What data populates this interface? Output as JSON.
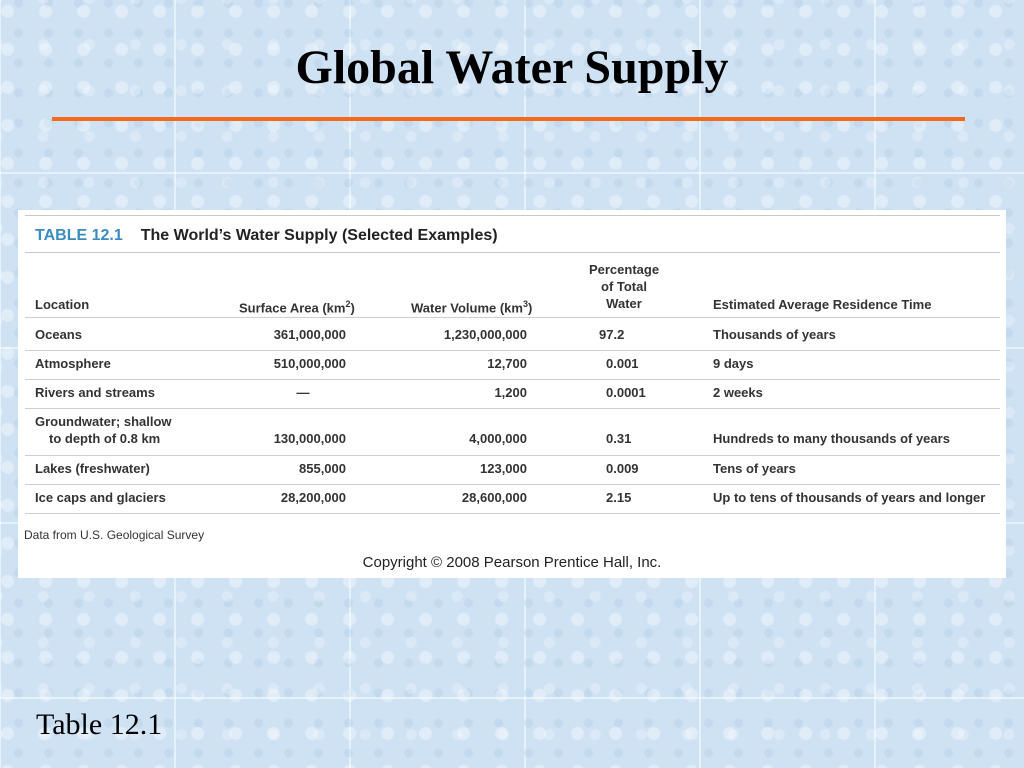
{
  "slide": {
    "title": "Global Water Supply",
    "footer": "Table 12.1"
  },
  "table": {
    "number": "TABLE 12.1",
    "title": "The World’s Water Supply (Selected Examples)",
    "columns": {
      "location": "Location",
      "surface_area": "Surface Area (km",
      "surface_area_exp": "2",
      "surface_area_close": ")",
      "water_volume": "Water Volume (km",
      "water_volume_exp": "3",
      "water_volume_close": ")",
      "percentage_line1": "Percentage",
      "percentage_line2": "of Total",
      "percentage_line3": "Water",
      "residence_time": "Estimated Average Residence Time"
    },
    "rows": [
      {
        "location": "Oceans",
        "area": "361,000,000",
        "volume": "1,230,000,000",
        "percent": "97.2",
        "time": "Thousands of years"
      },
      {
        "location": "Atmosphere",
        "area": "510,000,000",
        "volume": "12,700",
        "percent": "0.001",
        "time": "9 days"
      },
      {
        "location": "Rivers and streams",
        "area": "—",
        "volume": "1,200",
        "percent": "0.0001",
        "time": "2 weeks"
      },
      {
        "location_line1": "Groundwater; shallow",
        "location_line2": "to depth of 0.8 km",
        "area": "130,000,000",
        "volume": "4,000,000",
        "percent": "0.31",
        "time": "Hundreds to many thousands of years"
      },
      {
        "location": "Lakes (freshwater)",
        "area": "855,000",
        "volume": "123,000",
        "percent": "0.009",
        "time": "Tens of years"
      },
      {
        "location": "Ice caps and glaciers",
        "area": "28,200,000",
        "volume": "28,600,000",
        "percent": "2.15",
        "time": "Up to tens of thousands of years and longer"
      }
    ],
    "source": "Data from U.S. Geological Survey",
    "copyright": "Copyright © 2008 Pearson Prentice Hall, Inc."
  }
}
